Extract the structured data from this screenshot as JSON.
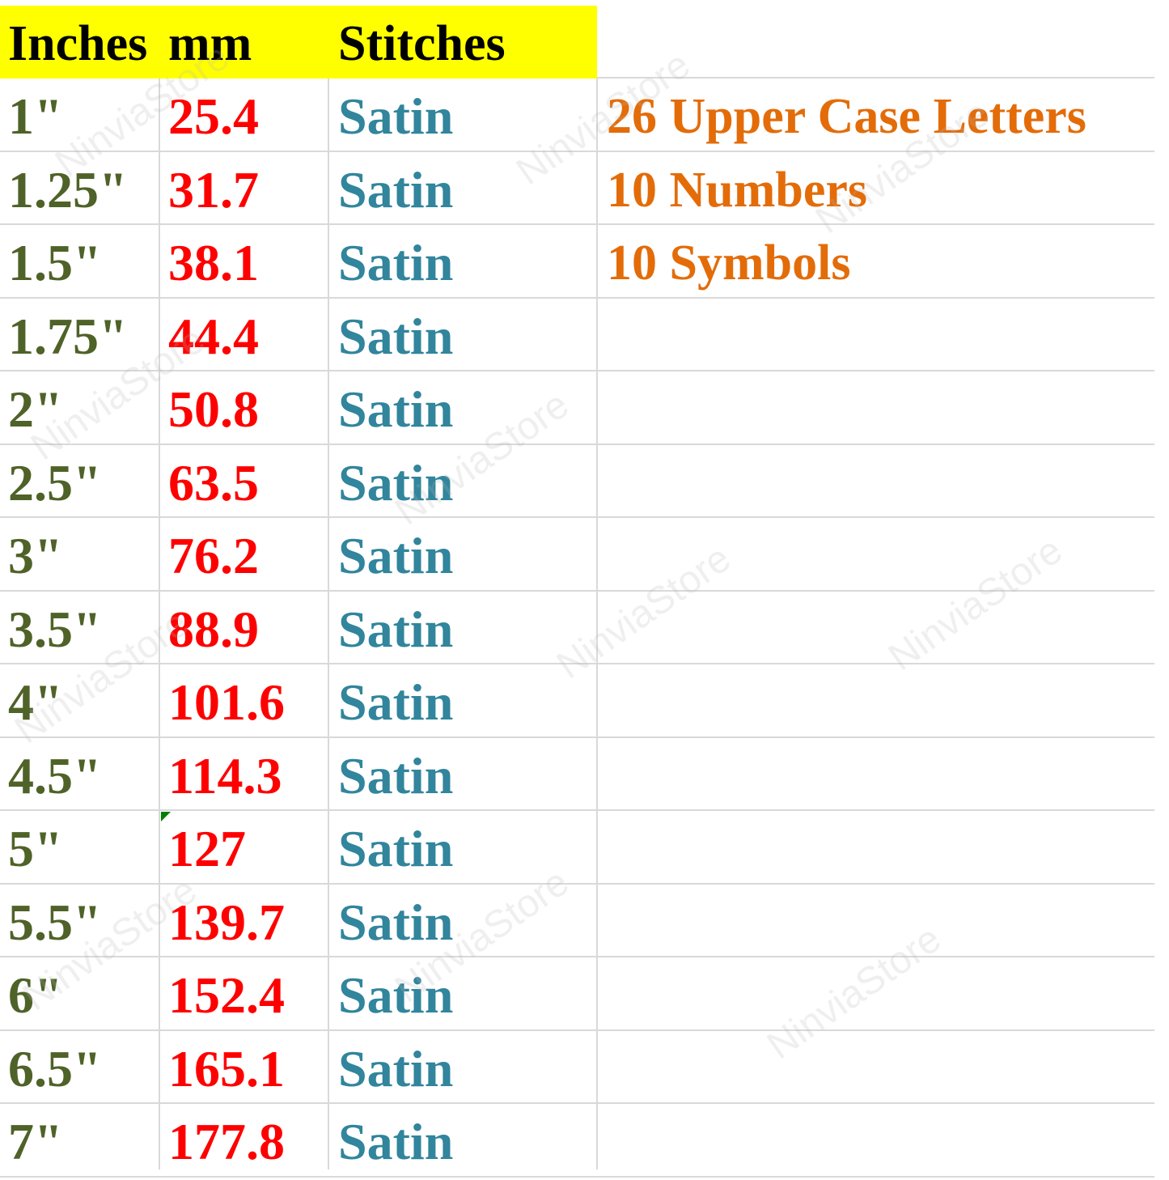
{
  "headers": {
    "inches": "Inches",
    "mm": "mm",
    "stitches": "Stitches"
  },
  "rows": [
    {
      "inches": "1\"",
      "mm": "25.4",
      "stitch": "Satin",
      "note": "26 Upper Case Letters"
    },
    {
      "inches": "1.25\"",
      "mm": "31.7",
      "stitch": "Satin",
      "note": "10 Numbers"
    },
    {
      "inches": "1.5\"",
      "mm": "38.1",
      "stitch": "Satin",
      "note": "10 Symbols"
    },
    {
      "inches": "1.75\"",
      "mm": "44.4",
      "stitch": "Satin"
    },
    {
      "inches": "2\"",
      "mm": "50.8",
      "stitch": "Satin"
    },
    {
      "inches": "2.5\"",
      "mm": "63.5",
      "stitch": "Satin"
    },
    {
      "inches": "3\"",
      "mm": "76.2",
      "stitch": "Satin"
    },
    {
      "inches": "3.5\"",
      "mm": "88.9",
      "stitch": "Satin"
    },
    {
      "inches": "4\"",
      "mm": "101.6",
      "stitch": "Satin"
    },
    {
      "inches": "4.5\"",
      "mm": "114.3",
      "stitch": "Satin"
    },
    {
      "inches": "5\"",
      "mm": "127",
      "stitch": "Satin"
    },
    {
      "inches": "5.5\"",
      "mm": "139.7",
      "stitch": "Satin"
    },
    {
      "inches": "6\"",
      "mm": "152.4",
      "stitch": "Satin"
    },
    {
      "inches": "6.5\"",
      "mm": "165.1",
      "stitch": "Satin"
    },
    {
      "inches": "7\"",
      "mm": "177.8",
      "stitch": "Satin"
    }
  ],
  "watermark": "NinviaStore",
  "colors": {
    "header_bg": "#ffff00",
    "inches": "#4f6228",
    "mm": "#ff0000",
    "stitch": "#31859c",
    "note": "#e36c09"
  }
}
